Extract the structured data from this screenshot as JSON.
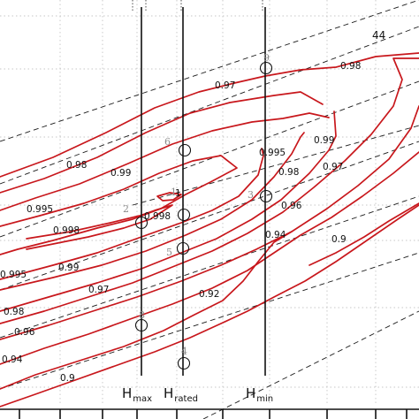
{
  "chart_data": {
    "type": "line",
    "title": "",
    "xlabel": "",
    "ylabel": "",
    "grid": true,
    "contour_levels": [
      {
        "name": "0.9"
      },
      {
        "name": "0.92"
      },
      {
        "name": "0.94"
      },
      {
        "name": "0.96"
      },
      {
        "name": "0.97"
      },
      {
        "name": "0.98"
      },
      {
        "name": "0.99"
      },
      {
        "name": "0.995"
      },
      {
        "name": "0.998"
      },
      {
        "name": "1"
      }
    ],
    "dashed_line_label": "44",
    "head_lines": [
      {
        "id": "hmax",
        "main": "H",
        "sub": "max"
      },
      {
        "id": "hrated",
        "main": "H",
        "sub": "rated"
      },
      {
        "id": "hmin",
        "main": "H",
        "sub": "min"
      }
    ],
    "operating_points": [
      {
        "label": "1"
      },
      {
        "label": "2"
      },
      {
        "label": "3"
      },
      {
        "label": "4"
      },
      {
        "label": "5"
      },
      {
        "label": "6"
      },
      {
        "label": "8"
      },
      {
        "label": "9"
      }
    ]
  }
}
